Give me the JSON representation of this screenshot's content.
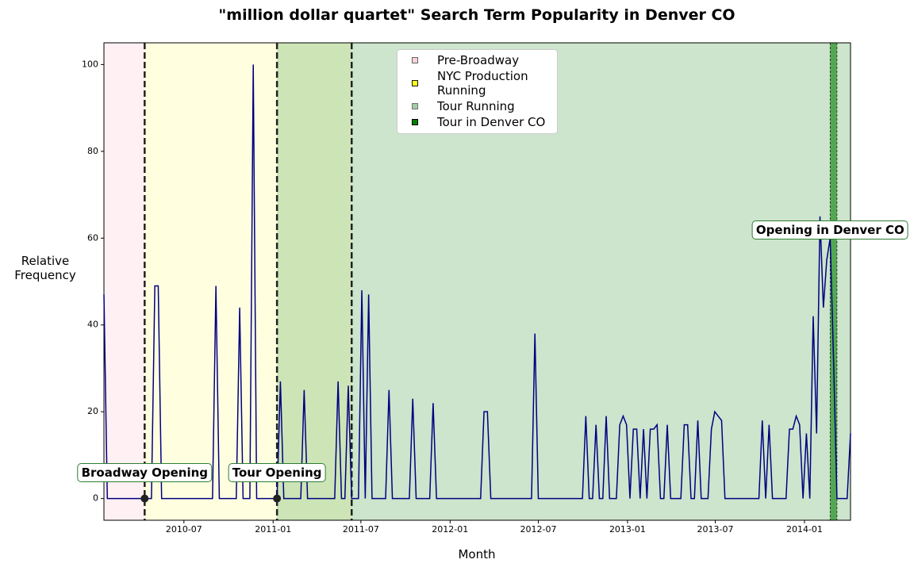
{
  "chart_data": {
    "type": "line",
    "title": "\"million dollar quartet\" Search Term Popularity in Denver CO",
    "x_label": "Month",
    "y_label": "Relative Frequency",
    "color": "#000080",
    "x": [
      "2010-01-17",
      "2010-01-24",
      "2010-04-25",
      "2010-05-02",
      "2010-05-09",
      "2010-05-16",
      "2010-08-29",
      "2010-09-05",
      "2010-09-12",
      "2010-10-17",
      "2010-10-24",
      "2010-10-31",
      "2010-11-14",
      "2010-11-21",
      "2010-11-28",
      "2011-01-09",
      "2011-01-16",
      "2011-01-23",
      "2011-02-27",
      "2011-03-06",
      "2011-03-13",
      "2011-05-08",
      "2011-05-15",
      "2011-05-22",
      "2011-05-29",
      "2011-06-05",
      "2011-06-12",
      "2011-06-26",
      "2011-07-03",
      "2011-07-10",
      "2011-07-17",
      "2011-07-24",
      "2011-08-21",
      "2011-08-28",
      "2011-09-04",
      "2011-10-09",
      "2011-10-16",
      "2011-10-23",
      "2011-11-20",
      "2011-11-27",
      "2011-12-04",
      "2012-03-04",
      "2012-03-11",
      "2012-03-18",
      "2012-03-25",
      "2012-06-17",
      "2012-06-24",
      "2012-07-01",
      "2012-09-30",
      "2012-10-07",
      "2012-10-14",
      "2012-10-21",
      "2012-10-28",
      "2012-11-04",
      "2012-11-11",
      "2012-11-18",
      "2012-11-25",
      "2012-12-09",
      "2012-12-16",
      "2012-12-23",
      "2012-12-30",
      "2013-01-06",
      "2013-01-13",
      "2013-01-20",
      "2013-01-27",
      "2013-02-03",
      "2013-02-10",
      "2013-02-17",
      "2013-02-24",
      "2013-03-03",
      "2013-03-10",
      "2013-03-17",
      "2013-03-24",
      "2013-03-31",
      "2013-04-21",
      "2013-04-28",
      "2013-05-05",
      "2013-05-12",
      "2013-05-19",
      "2013-05-26",
      "2013-06-02",
      "2013-06-16",
      "2013-06-23",
      "2013-06-30",
      "2013-07-07",
      "2013-07-14",
      "2013-07-21",
      "2013-09-29",
      "2013-10-06",
      "2013-10-13",
      "2013-10-20",
      "2013-10-27",
      "2013-11-24",
      "2013-12-01",
      "2013-12-08",
      "2013-12-15",
      "2013-12-22",
      "2013-12-29",
      "2014-01-05",
      "2014-01-12",
      "2014-01-19",
      "2014-01-26",
      "2014-02-02",
      "2014-02-09",
      "2014-02-16",
      "2014-02-23",
      "2014-03-02",
      "2014-03-09",
      "2014-03-30",
      "2014-04-06"
    ],
    "values": [
      47,
      0,
      0,
      49,
      49,
      0,
      0,
      49,
      0,
      0,
      44,
      0,
      0,
      100,
      0,
      0,
      27,
      0,
      0,
      25,
      0,
      0,
      27,
      0,
      0,
      26,
      0,
      0,
      48,
      0,
      47,
      0,
      0,
      25,
      0,
      0,
      23,
      0,
      0,
      22,
      0,
      0,
      20,
      20,
      0,
      0,
      38,
      0,
      0,
      19,
      0,
      0,
      17,
      0,
      0,
      19,
      0,
      0,
      17,
      19,
      17,
      0,
      16,
      16,
      0,
      16,
      0,
      16,
      16,
      17,
      0,
      0,
      17,
      0,
      0,
      17,
      17,
      0,
      0,
      18,
      0,
      0,
      16,
      20,
      19,
      18,
      0,
      0,
      18,
      0,
      17,
      0,
      0,
      16,
      16,
      19,
      17,
      0,
      15,
      0,
      42,
      15,
      65,
      44,
      55,
      60,
      32,
      0,
      0,
      15
    ],
    "xlim": [
      "2010-01-17",
      "2014-04-06"
    ],
    "ylim": [
      -5,
      105
    ],
    "xticks": [
      "2010-07",
      "2011-01",
      "2011-07",
      "2012-01",
      "2012-07",
      "2013-01",
      "2013-07",
      "2014-01"
    ],
    "yticks": [
      0,
      20,
      40,
      60,
      80,
      100
    ],
    "periods": [
      {
        "name": "Pre-Broadway",
        "start": "2010-01-17",
        "end": "2010-04-11",
        "color": "#ffb6c1"
      },
      {
        "name": "NYC Production Running",
        "start": "2010-04-11",
        "end": "2011-06-12",
        "color": "#ffff00"
      },
      {
        "name": "Tour Running",
        "start": "2011-01-09",
        "end": "2014-04-06",
        "color": "#5aa55a"
      },
      {
        "name": "Tour in Denver CO",
        "start": "2014-02-23",
        "end": "2014-03-09",
        "color": "#008000"
      }
    ],
    "annotations": [
      {
        "text": "Broadway Opening",
        "date": "2010-04-11",
        "marker": true
      },
      {
        "text": "Tour Opening",
        "date": "2011-01-09",
        "marker": true
      },
      {
        "text": "Opening in Denver CO",
        "date": "2014-02-23",
        "marker": false
      }
    ],
    "legend": "upper center"
  }
}
